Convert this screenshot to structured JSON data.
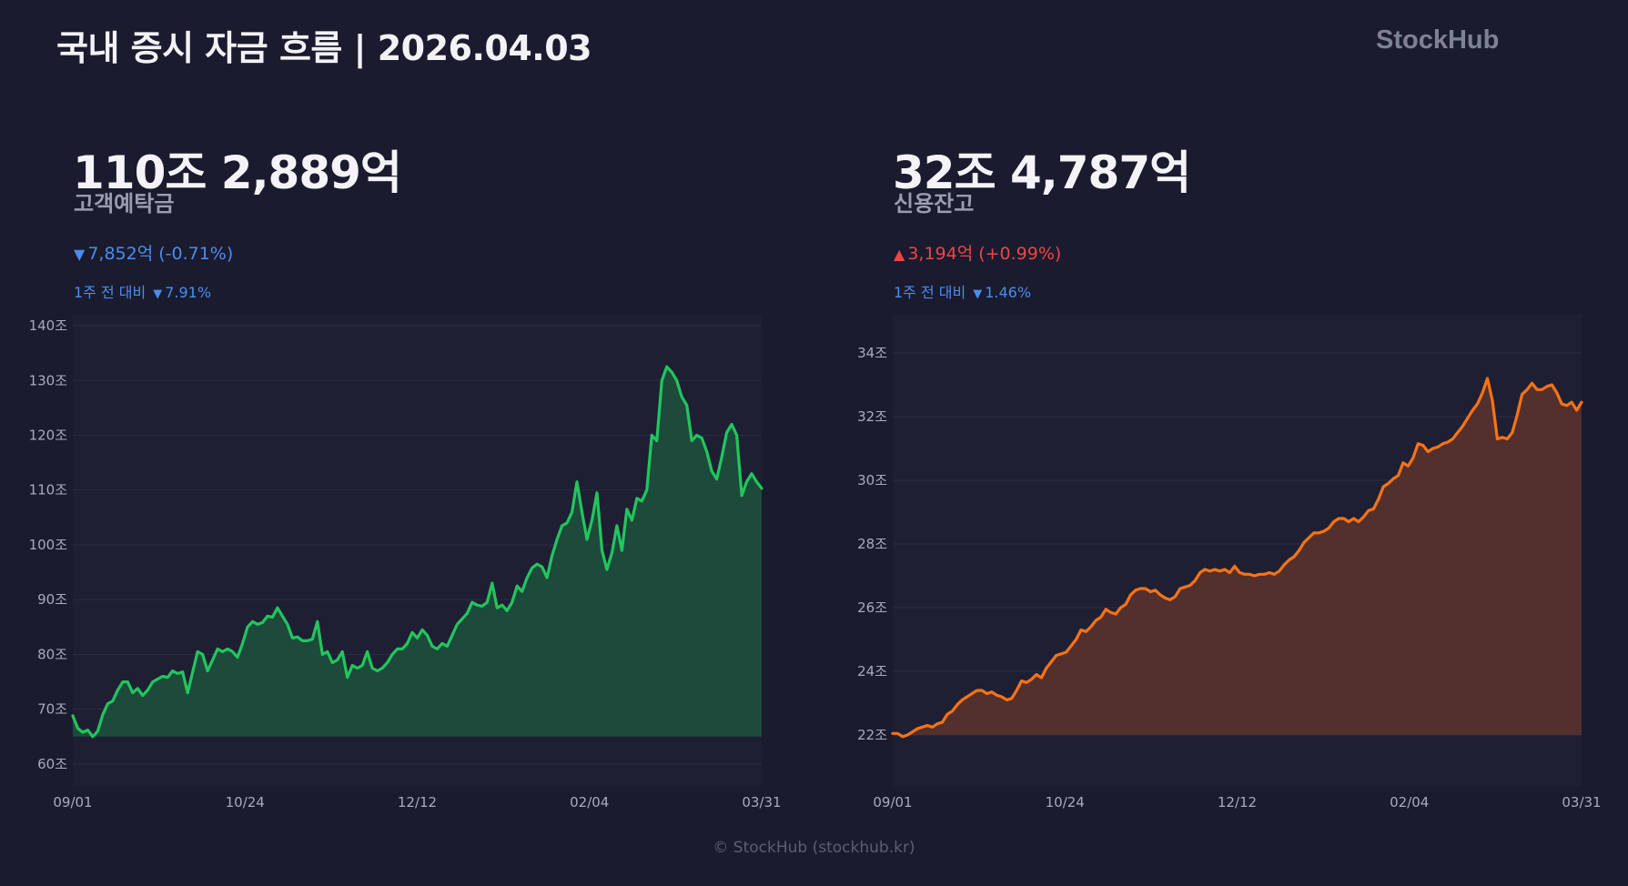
{
  "header": {
    "title": "국내 증시 자금 흐름 | 2026.04.03",
    "brand": "StockHub"
  },
  "panels": [
    {
      "big_value": "110조 2,889억",
      "label": "고객예탁금",
      "change_arrow": "▼",
      "change_text": "7,852억 (-0.71%)",
      "change_color": "#4a8df0",
      "week_label": "1주 전 대비",
      "week_arrow": "▼",
      "week_text": "7.91%",
      "line_color": "#22c55e",
      "fill_color": "#1d4a3a"
    },
    {
      "big_value": "32조 4,787억",
      "label": "신용잔고",
      "change_arrow": "▲",
      "change_text": "3,194억 (+0.99%)",
      "change_color": "#ef4545",
      "week_label": "1주 전 대비",
      "week_arrow": "▼",
      "week_text": "1.46%",
      "line_color": "#f97316",
      "fill_color": "#51302e"
    }
  ],
  "footer": "© StockHub (stockhub.kr)",
  "chart_data": [
    {
      "type": "area",
      "title": "고객예탁금",
      "xlabel": "",
      "ylabel": "",
      "ylim": [
        56,
        142
      ],
      "baseline": 65,
      "x_ticks": [
        "09/01",
        "10/24",
        "12/12",
        "02/04",
        "03/31"
      ],
      "y_ticks": [
        60,
        70,
        80,
        90,
        100,
        110,
        120,
        130,
        140
      ],
      "y_tick_labels": [
        "60조",
        "70조",
        "80조",
        "90조",
        "100조",
        "110조",
        "120조",
        "130조",
        "140조"
      ],
      "grid": true,
      "series": [
        {
          "values": [
            68.8,
            66.5,
            65.8,
            66.2,
            65,
            66,
            69,
            71,
            71.5,
            73.5,
            75,
            75,
            73,
            73.8,
            72.5,
            73.5,
            75,
            75.5,
            76,
            75.8,
            77,
            76.5,
            76.8,
            73,
            76.8,
            80.5,
            80,
            77,
            79,
            81,
            80.5,
            81,
            80.5,
            79.5,
            82,
            85,
            86,
            85.5,
            85.8,
            87,
            86.8,
            88.5,
            87,
            85.5,
            83,
            83.2,
            82.5,
            82.5,
            82.8,
            86,
            80,
            80.5,
            78.5,
            79,
            80.5,
            75.8,
            78,
            77.5,
            78,
            80.5,
            77.5,
            77,
            77.5,
            78.5,
            80,
            81,
            81,
            82,
            84,
            83,
            84.5,
            83.5,
            81.5,
            81,
            82,
            81.5,
            83.5,
            85.5,
            86.5,
            87.5,
            89.5,
            89,
            88.8,
            89.5,
            93,
            88.5,
            89,
            88,
            89.5,
            92.5,
            91.5,
            94,
            95.8,
            96.5,
            96,
            94,
            98,
            101,
            103.5,
            104,
            106,
            111.5,
            106,
            101,
            104.5,
            109.5,
            99,
            95.5,
            98.5,
            103.5,
            99,
            106.5,
            104.5,
            108.5,
            108,
            110,
            120,
            119,
            130,
            132.5,
            131.5,
            130,
            127,
            125.5,
            119,
            120,
            119.5,
            117,
            113.5,
            112,
            116,
            120.5,
            122,
            120,
            109,
            111.5,
            113,
            111.5,
            110.3
          ]
        }
      ]
    },
    {
      "type": "area",
      "title": "신용잔고",
      "xlabel": "",
      "ylabel": "",
      "ylim": [
        20.4,
        35.2
      ],
      "baseline": 22,
      "x_ticks": [
        "09/01",
        "10/24",
        "12/12",
        "02/04",
        "03/31"
      ],
      "y_ticks": [
        22,
        24,
        26,
        28,
        30,
        32,
        34
      ],
      "y_tick_labels": [
        "22조",
        "24조",
        "26조",
        "28조",
        "30조",
        "32조",
        "34조"
      ],
      "grid": true,
      "series": [
        {
          "values": [
            22.05,
            22.05,
            21.95,
            22,
            22.1,
            22.2,
            22.25,
            22.3,
            22.25,
            22.35,
            22.4,
            22.65,
            22.75,
            22.95,
            23.1,
            23.2,
            23.3,
            23.4,
            23.4,
            23.3,
            23.35,
            23.25,
            23.2,
            23.1,
            23.15,
            23.4,
            23.7,
            23.65,
            23.75,
            23.9,
            23.8,
            24.1,
            24.3,
            24.5,
            24.55,
            24.6,
            24.8,
            25,
            25.3,
            25.25,
            25.4,
            25.6,
            25.7,
            25.95,
            25.85,
            25.8,
            26,
            26.1,
            26.4,
            26.55,
            26.6,
            26.6,
            26.5,
            26.55,
            26.4,
            26.3,
            26.25,
            26.35,
            26.6,
            26.65,
            26.7,
            26.85,
            27.1,
            27.2,
            27.15,
            27.2,
            27.15,
            27.2,
            27.1,
            27.3,
            27.1,
            27.05,
            27.05,
            27,
            27.05,
            27.05,
            27.1,
            27.05,
            27.15,
            27.35,
            27.5,
            27.6,
            27.8,
            28.05,
            28.2,
            28.35,
            28.35,
            28.4,
            28.5,
            28.7,
            28.8,
            28.8,
            28.7,
            28.8,
            28.7,
            28.85,
            29.05,
            29.1,
            29.4,
            29.8,
            29.9,
            30.05,
            30.15,
            30.55,
            30.45,
            30.7,
            31.15,
            31.1,
            30.9,
            31,
            31.05,
            31.15,
            31.2,
            31.3,
            31.5,
            31.7,
            31.95,
            32.2,
            32.4,
            32.75,
            33.2,
            32.5,
            31.3,
            31.35,
            31.3,
            31.5,
            32.05,
            32.7,
            32.85,
            33.05,
            32.85,
            32.85,
            32.95,
            33,
            32.75,
            32.4,
            32.35,
            32.45,
            32.2,
            32.45
          ]
        }
      ]
    }
  ]
}
